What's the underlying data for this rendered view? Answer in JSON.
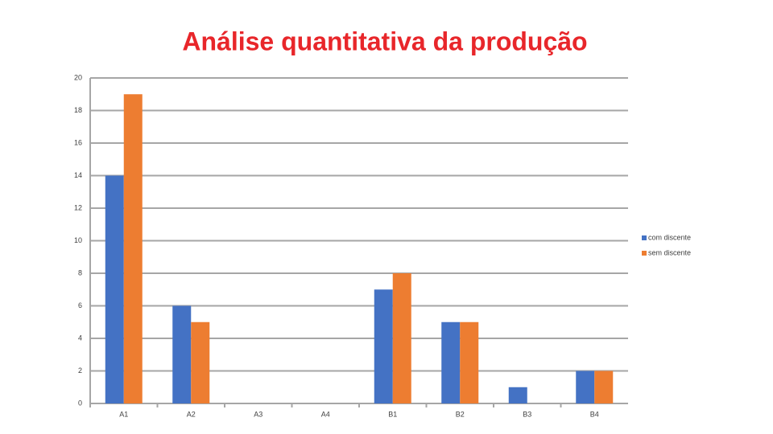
{
  "chart_data": {
    "type": "bar",
    "title": "Análise quantitativa da produção",
    "categories": [
      "A1",
      "A2",
      "A3",
      "A4",
      "B1",
      "B2",
      "B3",
      "B4"
    ],
    "series": [
      {
        "name": "com discente",
        "color": "#4472c4",
        "values": [
          14,
          6,
          0,
          0,
          7,
          5,
          1,
          2
        ]
      },
      {
        "name": "sem discente",
        "color": "#ed7d31",
        "values": [
          19,
          5,
          0,
          0,
          8,
          5,
          0,
          2
        ]
      }
    ],
    "ylim": [
      0,
      20
    ],
    "yticks": [
      0,
      2,
      4,
      6,
      8,
      10,
      12,
      14,
      16,
      18,
      20
    ],
    "grid": true,
    "legend": "right"
  }
}
